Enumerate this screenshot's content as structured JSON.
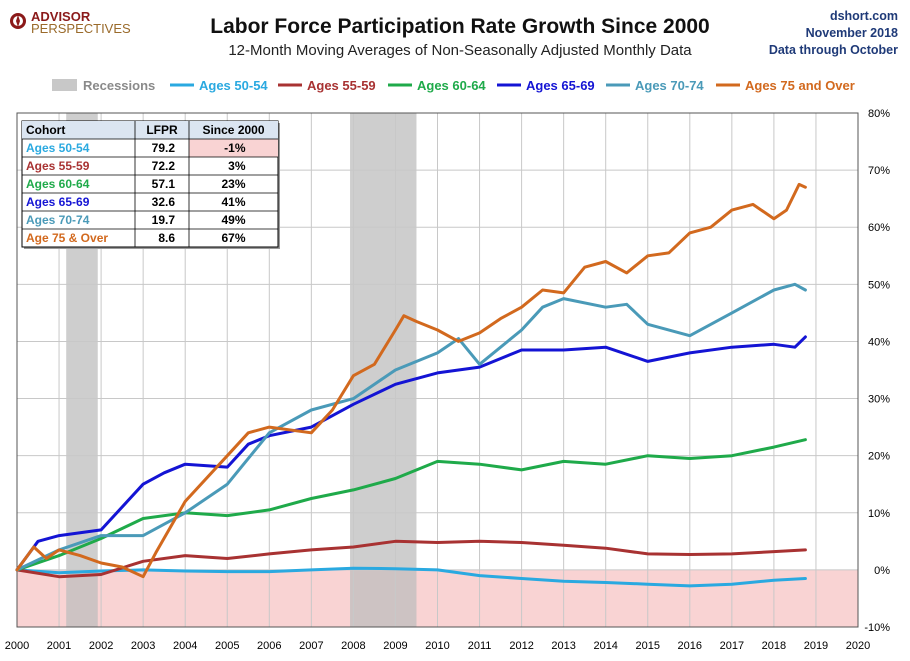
{
  "header": {
    "logo_line1": "ADVISOR",
    "logo_line2": "PERSPECTIVES",
    "title": "Labor Force Participation Rate Growth Since 2000",
    "subtitle": "12-Month Moving Averages of Non-Seasonally Adjusted Monthly Data",
    "source_site": "dshort.com",
    "source_date": "November 2018",
    "source_note": "Data through October"
  },
  "table": {
    "headers": [
      "Cohort",
      "LFPR",
      "Since 2000"
    ],
    "rows": [
      {
        "cohort": "Ages 50-54",
        "lfpr": "79.2",
        "since": "-1%",
        "color": "#2aa9e0",
        "negative": true
      },
      {
        "cohort": "Ages 55-59",
        "lfpr": "72.2",
        "since": "3%",
        "color": "#a83232",
        "negative": false
      },
      {
        "cohort": "Ages 60-64",
        "lfpr": "57.1",
        "since": "23%",
        "color": "#1faa4a",
        "negative": false
      },
      {
        "cohort": "Ages 65-69",
        "lfpr": "32.6",
        "since": "41%",
        "color": "#1414d4",
        "negative": false
      },
      {
        "cohort": "Ages 70-74",
        "lfpr": "19.7",
        "since": "49%",
        "color": "#4a9ab8",
        "negative": false
      },
      {
        "cohort": "Age 75 & Over",
        "lfpr": "8.6",
        "since": "67%",
        "color": "#d2691e",
        "negative": false
      }
    ]
  },
  "chart_data": {
    "type": "line",
    "x_range": [
      2000,
      2020
    ],
    "ylim": [
      -10,
      80
    ],
    "x_ticks": [
      "2000",
      "2001",
      "2002",
      "2003",
      "2004",
      "2005",
      "2006",
      "2007",
      "2008",
      "2009",
      "2010",
      "2011",
      "2012",
      "2013",
      "2014",
      "2015",
      "2016",
      "2017",
      "2018",
      "2019",
      "2020"
    ],
    "y_ticks": [
      {
        "v": -10,
        "label": "-10%"
      },
      {
        "v": 0,
        "label": "0%"
      },
      {
        "v": 10,
        "label": "10%"
      },
      {
        "v": 20,
        "label": "20%"
      },
      {
        "v": 30,
        "label": "30%"
      },
      {
        "v": 40,
        "label": "40%"
      },
      {
        "v": 50,
        "label": "50%"
      },
      {
        "v": 60,
        "label": "60%"
      },
      {
        "v": 70,
        "label": "70%"
      },
      {
        "v": 80,
        "label": "80%"
      }
    ],
    "grid": true,
    "negative_region_color": "#f9d3d3",
    "recessions": [
      {
        "start": 2001.17,
        "end": 2001.92
      },
      {
        "start": 2007.92,
        "end": 2009.5
      }
    ],
    "recession_legend_label": "Recessions",
    "series": [
      {
        "name": "Ages 50-54",
        "color": "#2aa9e0",
        "points": [
          [
            2000,
            0
          ],
          [
            2001,
            -0.5
          ],
          [
            2002,
            -0.2
          ],
          [
            2003,
            0
          ],
          [
            2004,
            -0.2
          ],
          [
            2005,
            -0.3
          ],
          [
            2006,
            -0.3
          ],
          [
            2007,
            0
          ],
          [
            2008,
            0.3
          ],
          [
            2009,
            0.2
          ],
          [
            2010,
            0
          ],
          [
            2011,
            -1
          ],
          [
            2012,
            -1.5
          ],
          [
            2013,
            -2
          ],
          [
            2014,
            -2.2
          ],
          [
            2015,
            -2.5
          ],
          [
            2016,
            -2.8
          ],
          [
            2017,
            -2.5
          ],
          [
            2018,
            -1.8
          ],
          [
            2018.75,
            -1.5
          ]
        ]
      },
      {
        "name": "Ages 55-59",
        "color": "#a83232",
        "points": [
          [
            2000,
            0
          ],
          [
            2001,
            -1.2
          ],
          [
            2002,
            -0.8
          ],
          [
            2003,
            1.5
          ],
          [
            2004,
            2.5
          ],
          [
            2005,
            2
          ],
          [
            2006,
            2.8
          ],
          [
            2007,
            3.5
          ],
          [
            2008,
            4
          ],
          [
            2009,
            5
          ],
          [
            2010,
            4.8
          ],
          [
            2011,
            5
          ],
          [
            2012,
            4.8
          ],
          [
            2013,
            4.3
          ],
          [
            2014,
            3.8
          ],
          [
            2015,
            2.8
          ],
          [
            2016,
            2.7
          ],
          [
            2017,
            2.8
          ],
          [
            2018,
            3.2
          ],
          [
            2018.75,
            3.5
          ]
        ]
      },
      {
        "name": "Ages 60-64",
        "color": "#1faa4a",
        "points": [
          [
            2000,
            0
          ],
          [
            2001,
            2.5
          ],
          [
            2002,
            5.5
          ],
          [
            2003,
            9
          ],
          [
            2004,
            10
          ],
          [
            2005,
            9.5
          ],
          [
            2006,
            10.5
          ],
          [
            2007,
            12.5
          ],
          [
            2008,
            14
          ],
          [
            2009,
            16
          ],
          [
            2010,
            19
          ],
          [
            2011,
            18.5
          ],
          [
            2012,
            17.5
          ],
          [
            2013,
            19
          ],
          [
            2014,
            18.5
          ],
          [
            2015,
            20
          ],
          [
            2016,
            19.5
          ],
          [
            2017,
            20
          ],
          [
            2018,
            21.5
          ],
          [
            2018.75,
            22.8
          ]
        ]
      },
      {
        "name": "Ages 65-69",
        "color": "#1414d4",
        "points": [
          [
            2000,
            0
          ],
          [
            2000.5,
            5
          ],
          [
            2001,
            6
          ],
          [
            2002,
            7
          ],
          [
            2003,
            15
          ],
          [
            2003.5,
            17
          ],
          [
            2004,
            18.5
          ],
          [
            2005,
            18
          ],
          [
            2005.5,
            22
          ],
          [
            2006,
            23.5
          ],
          [
            2007,
            25
          ],
          [
            2008,
            29
          ],
          [
            2009,
            32.5
          ],
          [
            2010,
            34.5
          ],
          [
            2011,
            35.5
          ],
          [
            2012,
            38.5
          ],
          [
            2013,
            38.5
          ],
          [
            2014,
            39
          ],
          [
            2015,
            36.5
          ],
          [
            2016,
            38
          ],
          [
            2017,
            39
          ],
          [
            2018,
            39.5
          ],
          [
            2018.5,
            39
          ],
          [
            2018.75,
            40.8
          ]
        ]
      },
      {
        "name": "Ages 70-74",
        "color": "#4a9ab8",
        "points": [
          [
            2000,
            0
          ],
          [
            2001,
            3.5
          ],
          [
            2002,
            6
          ],
          [
            2003,
            6
          ],
          [
            2004,
            10
          ],
          [
            2005,
            15
          ],
          [
            2006,
            24
          ],
          [
            2007,
            28
          ],
          [
            2008,
            30
          ],
          [
            2009,
            35
          ],
          [
            2010,
            38
          ],
          [
            2010.5,
            40.5
          ],
          [
            2011,
            36
          ],
          [
            2012,
            42
          ],
          [
            2012.5,
            46
          ],
          [
            2013,
            47.5
          ],
          [
            2014,
            46
          ],
          [
            2014.5,
            46.5
          ],
          [
            2015,
            43
          ],
          [
            2016,
            41
          ],
          [
            2017,
            45
          ],
          [
            2018,
            49
          ],
          [
            2018.5,
            50
          ],
          [
            2018.75,
            49
          ]
        ]
      },
      {
        "name": "Ages 75 and Over",
        "color": "#d2691e",
        "points": [
          [
            2000,
            0
          ],
          [
            2000.4,
            4
          ],
          [
            2000.7,
            2
          ],
          [
            2001,
            3.5
          ],
          [
            2001.5,
            2.5
          ],
          [
            2002,
            1.2
          ],
          [
            2002.5,
            0.5
          ],
          [
            2003,
            -1.2
          ],
          [
            2003.3,
            3
          ],
          [
            2004,
            12
          ],
          [
            2005,
            20
          ],
          [
            2005.5,
            24
          ],
          [
            2006,
            25
          ],
          [
            2007,
            24
          ],
          [
            2007.5,
            28
          ],
          [
            2008,
            34
          ],
          [
            2008.5,
            36
          ],
          [
            2009,
            42
          ],
          [
            2009.2,
            44.5
          ],
          [
            2009.5,
            43.5
          ],
          [
            2010,
            42
          ],
          [
            2010.5,
            40
          ],
          [
            2011,
            41.5
          ],
          [
            2011.5,
            44
          ],
          [
            2012,
            46
          ],
          [
            2012.5,
            49
          ],
          [
            2013,
            48.5
          ],
          [
            2013.5,
            53
          ],
          [
            2014,
            54
          ],
          [
            2014.5,
            52
          ],
          [
            2015,
            55
          ],
          [
            2015.5,
            55.5
          ],
          [
            2016,
            59
          ],
          [
            2016.5,
            60
          ],
          [
            2017,
            63
          ],
          [
            2017.5,
            64
          ],
          [
            2018,
            61.5
          ],
          [
            2018.3,
            63
          ],
          [
            2018.5,
            66
          ],
          [
            2018.6,
            67.5
          ],
          [
            2018.75,
            67
          ]
        ]
      }
    ]
  }
}
